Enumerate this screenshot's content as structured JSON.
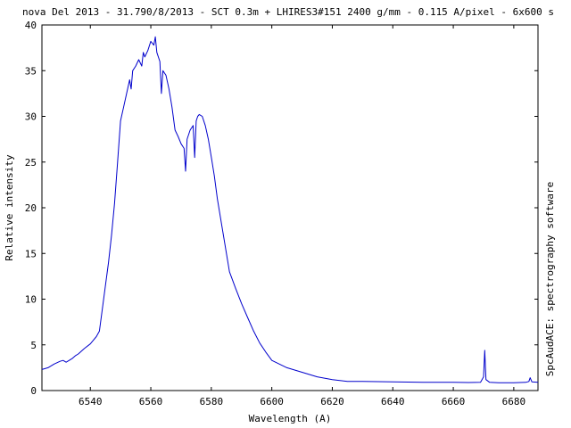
{
  "chart_data": {
    "type": "line",
    "title": "nova Del 2013 - 31.790/8/2013 - SCT 0.3m + LHIRES3#151 2400 g/mm - 0.115 A/pixel - 6x600 s",
    "xlabel": "Wavelength (A)",
    "ylabel": "Relative intensity",
    "side_label": "SpcAudACE: spectrography software",
    "xlim": [
      6524,
      6688
    ],
    "ylim": [
      0,
      40
    ],
    "x_ticks": [
      6540,
      6560,
      6580,
      6600,
      6620,
      6640,
      6660,
      6680
    ],
    "y_ticks": [
      0,
      5,
      10,
      15,
      20,
      25,
      30,
      35,
      40
    ],
    "grid": false,
    "series": [
      {
        "color": "#0000cc",
        "x": [
          6524,
          6526,
          6528,
          6530,
          6531,
          6532,
          6533,
          6534,
          6535,
          6536,
          6538,
          6540,
          6542,
          6543,
          6544,
          6545,
          6546,
          6547,
          6548,
          6549,
          6550,
          6551,
          6552,
          6553,
          6553.5,
          6554,
          6555,
          6556,
          6557,
          6557.5,
          6558,
          6559,
          6560,
          6561,
          6561.5,
          6562,
          6563,
          6563.5,
          6564,
          6565,
          6566,
          6567,
          6568,
          6569,
          6570,
          6571,
          6571.5,
          6572,
          6573,
          6574,
          6574.5,
          6575,
          6575.5,
          6576,
          6577,
          6578,
          6579,
          6580,
          6581,
          6582,
          6583,
          6584,
          6585,
          6586,
          6588,
          6590,
          6592,
          6594,
          6596,
          6598,
          6600,
          6605,
          6610,
          6615,
          6620,
          6625,
          6630,
          6640,
          6650,
          6660,
          6665,
          6669,
          6670,
          6670.4,
          6670.8,
          6672,
          6675,
          6680,
          6684,
          6685,
          6685.4,
          6686,
          6688
        ],
        "y": [
          2.3,
          2.5,
          2.9,
          3.2,
          3.3,
          3.1,
          3.3,
          3.5,
          3.8,
          4.0,
          4.6,
          5.1,
          5.9,
          6.5,
          9.0,
          11.5,
          14.0,
          17.0,
          20.5,
          25.0,
          29.5,
          31.0,
          32.5,
          34.0,
          33.0,
          35.0,
          35.5,
          36.2,
          35.5,
          37.0,
          36.5,
          37.2,
          38.2,
          37.8,
          38.7,
          37.0,
          36.0,
          32.5,
          35.0,
          34.5,
          33.0,
          31.0,
          28.5,
          27.8,
          27.0,
          26.5,
          24.0,
          27.5,
          28.5,
          29.0,
          25.5,
          29.5,
          30.0,
          30.2,
          30.0,
          29.0,
          27.5,
          25.5,
          23.5,
          21.0,
          19.0,
          17.0,
          15.0,
          13.0,
          11.2,
          9.5,
          8.0,
          6.5,
          5.2,
          4.2,
          3.3,
          2.5,
          2.0,
          1.5,
          1.2,
          1.0,
          1.0,
          0.95,
          0.9,
          0.9,
          0.88,
          0.9,
          1.5,
          4.4,
          1.2,
          0.9,
          0.85,
          0.85,
          0.9,
          1.0,
          1.4,
          0.95,
          0.9
        ]
      }
    ]
  }
}
